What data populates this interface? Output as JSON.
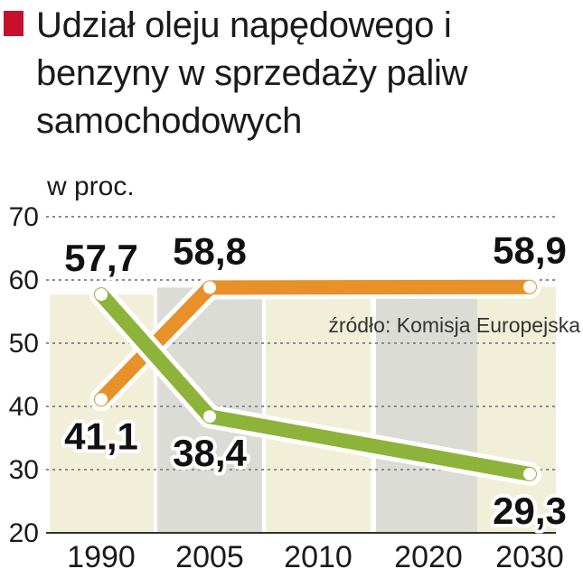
{
  "title": "Udział oleju napędowego i benzyny w sprzedaży paliw samochodowych",
  "unit": "w proc.",
  "source": "źródło: Komisja Europejska",
  "colors": {
    "accent": "#c8102e",
    "diesel": "#8db33a",
    "gasoline": "#e8902a",
    "band_light": "#f1efd8",
    "band_gray": "#dcdcd6"
  },
  "chart_data": {
    "type": "line",
    "categories": [
      "1990",
      "2005",
      "2010",
      "2020",
      "2030"
    ],
    "ylim": [
      20,
      70
    ],
    "yticks": [
      "70",
      "60",
      "50",
      "40",
      "30",
      "20"
    ],
    "series": [
      {
        "points": [
          {
            "x": "1990",
            "y": 57.7,
            "label": "57,7"
          },
          {
            "x": "2005",
            "y": 38.4,
            "label": "38,4"
          },
          {
            "x": "2030",
            "y": 29.3,
            "label": "29,3"
          }
        ]
      },
      {
        "points": [
          {
            "x": "1990",
            "y": 41.1,
            "label": "41,1"
          },
          {
            "x": "2005",
            "y": 58.8,
            "label": "58,8"
          },
          {
            "x": "2030",
            "y": 58.9,
            "label": "58,9"
          }
        ]
      }
    ],
    "bands": [
      57.7,
      58.8,
      58.9,
      58.9,
      58.9
    ],
    "grid": true
  }
}
